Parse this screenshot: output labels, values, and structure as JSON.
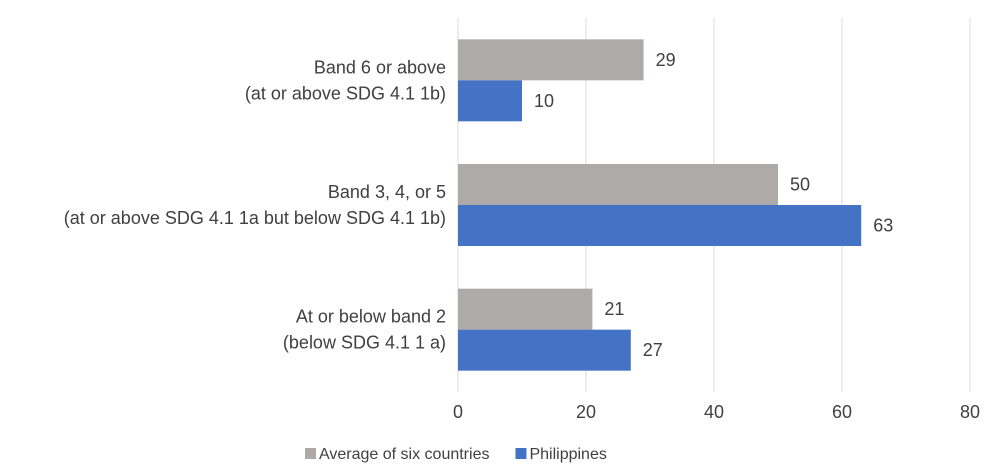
{
  "chart_data": {
    "type": "bar",
    "orientation": "horizontal",
    "categories": [
      {
        "line1": "Band 6 or above",
        "line2": "(at or above SDG 4.1 1b)"
      },
      {
        "line1": "Band 3, 4, or 5",
        "line2": "(at or above SDG 4.1 1a but below SDG 4.1 1b)"
      },
      {
        "line1": "At or below band 2",
        "line2": "(below SDG 4.1 1 a)"
      }
    ],
    "series": [
      {
        "name": "Average of six countries",
        "color": "#aeaaaa",
        "values": [
          29,
          50,
          21
        ]
      },
      {
        "name": "Philippines",
        "color": "#4472c4",
        "values": [
          10,
          63,
          27
        ]
      }
    ],
    "xlim": [
      0,
      80
    ],
    "xticks": [
      0,
      20,
      40,
      60,
      80
    ],
    "grid": "vertical",
    "legend_position": "bottom-center",
    "title": "",
    "xlabel": "",
    "ylabel": ""
  }
}
